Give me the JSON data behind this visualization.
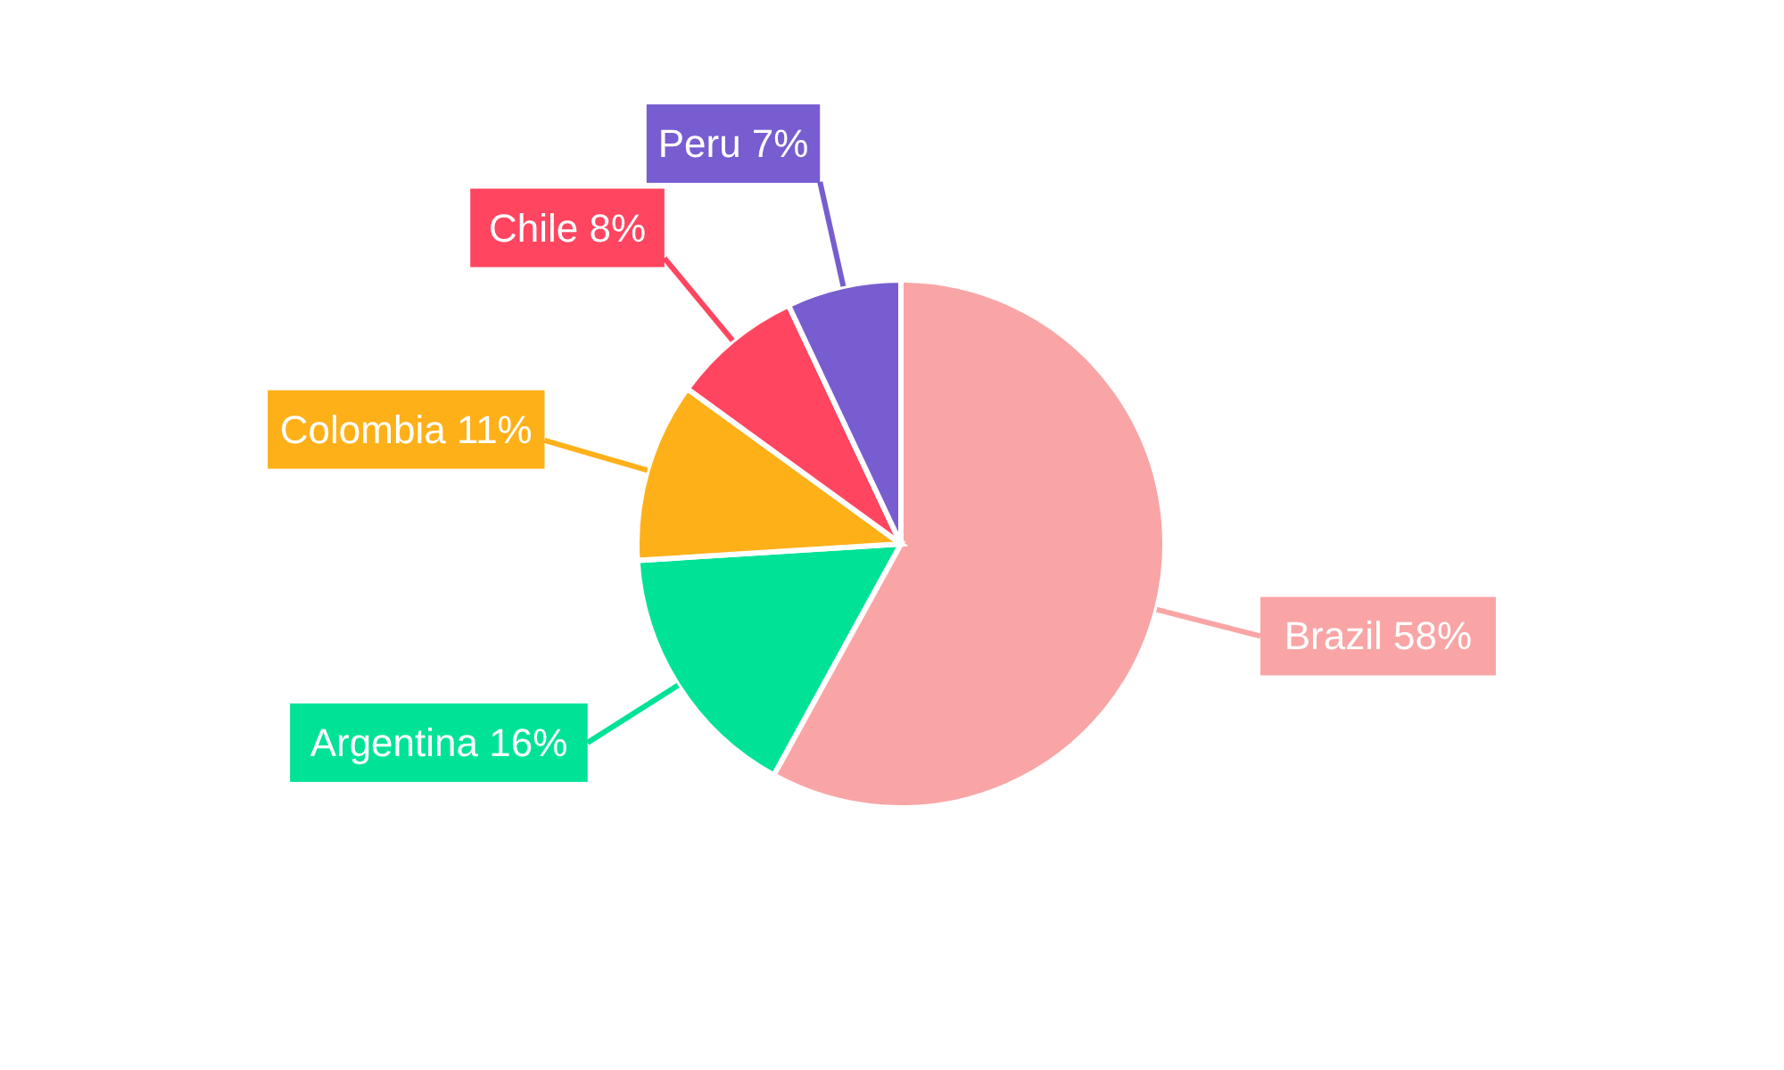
{
  "chart_data": {
    "type": "pie",
    "categories": [
      "Brazil",
      "Argentina",
      "Colombia",
      "Chile",
      "Peru"
    ],
    "values": [
      58,
      16,
      11,
      8,
      7
    ],
    "value_labels": [
      "58%",
      "16%",
      "11%",
      "8%",
      "7%"
    ],
    "colors": [
      "#f9a5a6",
      "#00e396",
      "#feb019",
      "#ff4560",
      "#775dd0"
    ],
    "legend": false
  }
}
